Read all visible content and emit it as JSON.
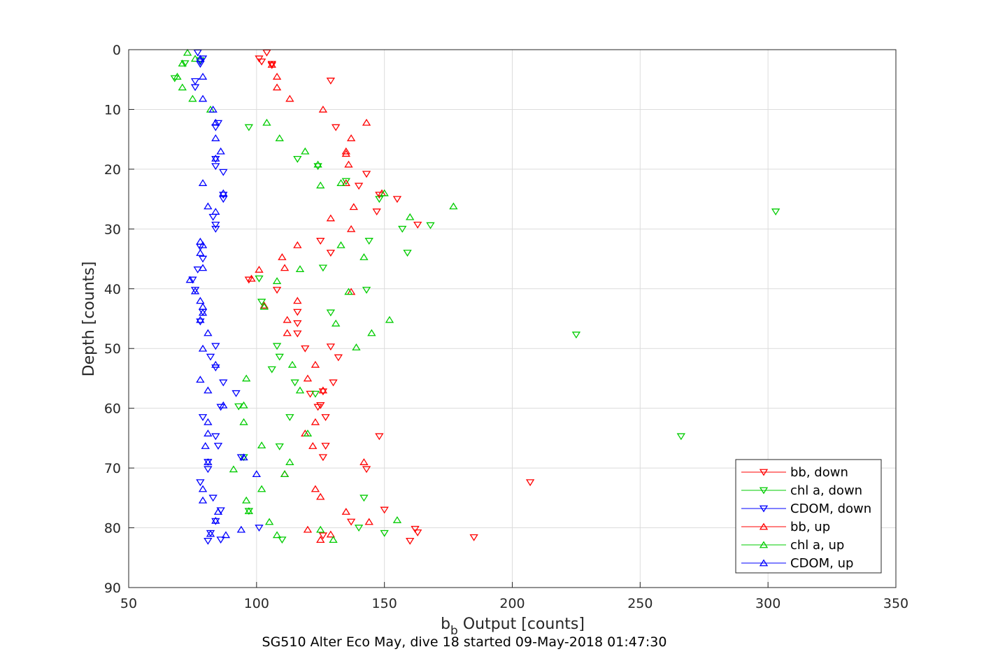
{
  "chart_data": {
    "type": "scatter",
    "xlabel_main": "b",
    "xlabel_sub": "b",
    "xlabel_rest": " Output [counts]",
    "ylabel": "Depth [counts]",
    "caption": "SG510 Alter Eco May, dive 18 started 09-May-2018 01:47:30",
    "xlim": [
      50,
      350
    ],
    "ylim": [
      0,
      90
    ],
    "y_reversed": true,
    "grid": true,
    "legend_position": "bottom-right",
    "xticks": [
      "50",
      "100",
      "150",
      "200",
      "250",
      "300",
      "350"
    ],
    "yticks": [
      "0",
      "10",
      "20",
      "30",
      "40",
      "50",
      "60",
      "70",
      "80",
      "90"
    ],
    "series": [
      {
        "name": "bb, down",
        "color": "#ff0000",
        "marker": "down",
        "points": [
          [
            104,
            0.5
          ],
          [
            101,
            1.5
          ],
          [
            102,
            2
          ],
          [
            106,
            2.4
          ],
          [
            106,
            2.6
          ],
          [
            129,
            5.2
          ],
          [
            131,
            13
          ],
          [
            143,
            20.8
          ],
          [
            140,
            22.8
          ],
          [
            148,
            24.3
          ],
          [
            155,
            25
          ],
          [
            147,
            27.1
          ],
          [
            163,
            29.3
          ],
          [
            125,
            32
          ],
          [
            129,
            34
          ],
          [
            97,
            38.5
          ],
          [
            108,
            40.2
          ],
          [
            116,
            43.9
          ],
          [
            116,
            45.8
          ],
          [
            116,
            47.5
          ],
          [
            129,
            49.7
          ],
          [
            119,
            50
          ],
          [
            132,
            51.5
          ],
          [
            130,
            55.7
          ],
          [
            126,
            57.2
          ],
          [
            121,
            57.6
          ],
          [
            125,
            59.5
          ],
          [
            124,
            59.8
          ],
          [
            127,
            61.5
          ],
          [
            148,
            64.7
          ],
          [
            127,
            66.3
          ],
          [
            126,
            68.2
          ],
          [
            143,
            70.2
          ],
          [
            207,
            72.4
          ],
          [
            150,
            77
          ],
          [
            137,
            79
          ],
          [
            126,
            81.3
          ],
          [
            162,
            80.2
          ],
          [
            163,
            80.8
          ],
          [
            160,
            82.2
          ],
          [
            185,
            81.6
          ]
        ]
      },
      {
        "name": "chl a, down",
        "color": "#00cc00",
        "marker": "down",
        "points": [
          [
            72,
            2.3
          ],
          [
            78,
            1.8
          ],
          [
            68,
            4.8
          ],
          [
            97,
            13
          ],
          [
            116,
            18.3
          ],
          [
            124,
            19.5
          ],
          [
            135,
            22
          ],
          [
            148,
            25
          ],
          [
            303,
            27.1
          ],
          [
            168,
            29.4
          ],
          [
            157,
            30
          ],
          [
            144,
            32
          ],
          [
            159,
            34
          ],
          [
            126,
            36.5
          ],
          [
            101,
            38.3
          ],
          [
            143,
            40.2
          ],
          [
            102,
            42.2
          ],
          [
            129,
            44
          ],
          [
            225,
            47.7
          ],
          [
            108,
            49.6
          ],
          [
            109,
            51.4
          ],
          [
            106,
            53.5
          ],
          [
            115,
            55.7
          ],
          [
            123,
            57.6
          ],
          [
            93,
            59.7
          ],
          [
            113,
            61.5
          ],
          [
            266,
            64.7
          ],
          [
            109,
            66.4
          ],
          [
            95,
            68.2
          ],
          [
            142,
            75
          ],
          [
            97,
            77.2
          ],
          [
            140,
            80
          ],
          [
            150,
            80.9
          ],
          [
            110,
            82
          ]
        ]
      },
      {
        "name": "CDOM, down",
        "color": "#0000ff",
        "marker": "down",
        "points": [
          [
            77,
            0.5
          ],
          [
            79,
            1.5
          ],
          [
            78,
            2
          ],
          [
            78,
            2.4
          ],
          [
            76,
            5.3
          ],
          [
            76,
            6.3
          ],
          [
            84,
            13
          ],
          [
            85,
            12.3
          ],
          [
            84,
            18.3
          ],
          [
            84,
            19.5
          ],
          [
            87,
            20.5
          ],
          [
            87,
            24.3
          ],
          [
            87,
            25
          ],
          [
            83,
            28
          ],
          [
            84,
            29.3
          ],
          [
            84,
            30
          ],
          [
            78,
            33
          ],
          [
            79,
            35
          ],
          [
            77,
            36.8
          ],
          [
            75,
            38.5
          ],
          [
            76,
            40.2
          ],
          [
            79,
            43.9
          ],
          [
            78,
            45.5
          ],
          [
            84,
            49.6
          ],
          [
            82,
            51.4
          ],
          [
            84,
            53.2
          ],
          [
            87,
            55.7
          ],
          [
            92,
            57.5
          ],
          [
            86,
            59.8
          ],
          [
            79,
            61.5
          ],
          [
            84,
            64.7
          ],
          [
            85,
            66.3
          ],
          [
            94,
            68.2
          ],
          [
            81,
            69
          ],
          [
            81,
            70.2
          ],
          [
            78,
            72.4
          ],
          [
            83,
            75
          ],
          [
            86,
            77.1
          ],
          [
            84,
            78.9
          ],
          [
            101,
            80
          ],
          [
            82,
            80.9
          ],
          [
            81,
            82.2
          ],
          [
            86,
            82
          ]
        ]
      },
      {
        "name": "bb, up",
        "color": "#ff0000",
        "marker": "up",
        "points": [
          [
            106,
            2.5
          ],
          [
            108,
            4.5
          ],
          [
            108,
            6.3
          ],
          [
            113,
            8.2
          ],
          [
            126,
            10
          ],
          [
            143,
            12.2
          ],
          [
            137,
            14.8
          ],
          [
            135,
            17
          ],
          [
            135,
            17.4
          ],
          [
            136,
            19.2
          ],
          [
            135,
            22.3
          ],
          [
            149,
            24
          ],
          [
            138,
            26.3
          ],
          [
            129,
            28.2
          ],
          [
            137,
            30
          ],
          [
            116,
            32.7
          ],
          [
            110,
            34.7
          ],
          [
            111,
            36.5
          ],
          [
            101,
            36.8
          ],
          [
            98,
            38.3
          ],
          [
            137,
            40.5
          ],
          [
            103,
            42.8
          ],
          [
            116,
            42
          ],
          [
            112,
            45.2
          ],
          [
            112,
            47.4
          ],
          [
            123,
            52.7
          ],
          [
            120,
            55
          ],
          [
            126,
            57
          ],
          [
            123,
            62.3
          ],
          [
            119,
            64.2
          ],
          [
            122,
            66.3
          ],
          [
            142,
            69
          ],
          [
            111,
            71
          ],
          [
            123,
            73.5
          ],
          [
            125,
            74.8
          ],
          [
            135,
            77.3
          ],
          [
            144,
            79
          ],
          [
            120,
            80.3
          ],
          [
            129,
            81.1
          ],
          [
            125,
            82
          ]
        ]
      },
      {
        "name": "chl a, up",
        "color": "#00cc00",
        "marker": "up",
        "points": [
          [
            73,
            0.5
          ],
          [
            76,
            1.5
          ],
          [
            71,
            2.3
          ],
          [
            69,
            4.5
          ],
          [
            71,
            6.3
          ],
          [
            75,
            8.2
          ],
          [
            82,
            10
          ],
          [
            104,
            12.2
          ],
          [
            109,
            14.8
          ],
          [
            119,
            17
          ],
          [
            124,
            19.2
          ],
          [
            125,
            22.7
          ],
          [
            133,
            22.3
          ],
          [
            150,
            24
          ],
          [
            177,
            26.2
          ],
          [
            160,
            28
          ],
          [
            133,
            32.7
          ],
          [
            142,
            34.7
          ],
          [
            117,
            36.7
          ],
          [
            108,
            38.7
          ],
          [
            103,
            43
          ],
          [
            136,
            40.5
          ],
          [
            152,
            45.2
          ],
          [
            131,
            45.8
          ],
          [
            145,
            47.4
          ],
          [
            139,
            49.8
          ],
          [
            114,
            52.7
          ],
          [
            117,
            57
          ],
          [
            95,
            59.5
          ],
          [
            95,
            62.3
          ],
          [
            120,
            64.2
          ],
          [
            102,
            66.2
          ],
          [
            113,
            69
          ],
          [
            111,
            71
          ],
          [
            102,
            73.5
          ],
          [
            96,
            75.4
          ],
          [
            97,
            77.2
          ],
          [
            105,
            79
          ],
          [
            155,
            78.7
          ],
          [
            125,
            80.3
          ],
          [
            108,
            81.2
          ],
          [
            130,
            82
          ],
          [
            96,
            55
          ],
          [
            91,
            70.2
          ]
        ]
      },
      {
        "name": "CDOM, up",
        "color": "#0000ff",
        "marker": "up",
        "points": [
          [
            78,
            1.5
          ],
          [
            79,
            4.5
          ],
          [
            79,
            8.2
          ],
          [
            83,
            10
          ],
          [
            84,
            12.2
          ],
          [
            84,
            14.8
          ],
          [
            86,
            17
          ],
          [
            84,
            18.2
          ],
          [
            79,
            22.3
          ],
          [
            87,
            24
          ],
          [
            81,
            26.2
          ],
          [
            84,
            27.1
          ],
          [
            78,
            32.1
          ],
          [
            79,
            32.7
          ],
          [
            78,
            34
          ],
          [
            79,
            36.5
          ],
          [
            74,
            38.5
          ],
          [
            76,
            40.4
          ],
          [
            78,
            42
          ],
          [
            79,
            43
          ],
          [
            79,
            44
          ],
          [
            78,
            45.2
          ],
          [
            81,
            47.4
          ],
          [
            79,
            50
          ],
          [
            84,
            52.7
          ],
          [
            78,
            55.2
          ],
          [
            81,
            57
          ],
          [
            87,
            59.5
          ],
          [
            81,
            62.3
          ],
          [
            81,
            64.2
          ],
          [
            80,
            66.3
          ],
          [
            95,
            68.2
          ],
          [
            81,
            69
          ],
          [
            100,
            71
          ],
          [
            79,
            73.5
          ],
          [
            79,
            75.4
          ],
          [
            85,
            77.3
          ],
          [
            84,
            78.8
          ],
          [
            94,
            80.3
          ],
          [
            88,
            81.2
          ],
          [
            82,
            81
          ]
        ]
      }
    ]
  }
}
